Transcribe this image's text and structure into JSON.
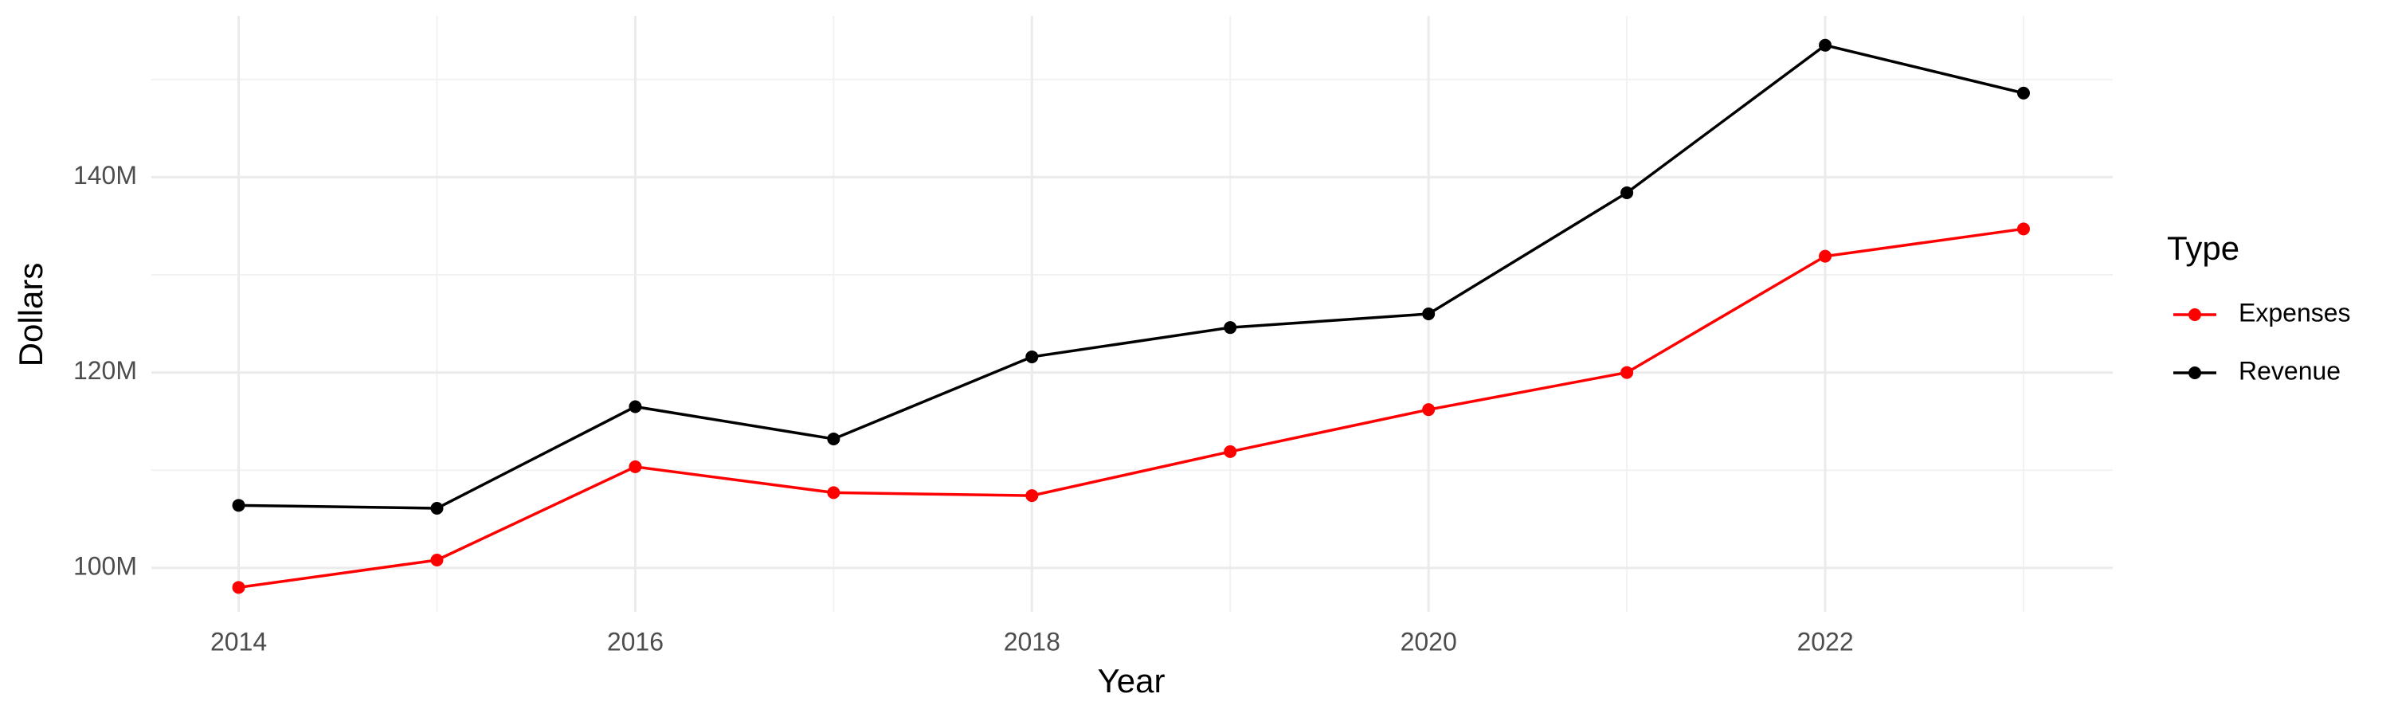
{
  "chart_data": {
    "type": "line",
    "x_label": "Year",
    "y_label": "Dollars",
    "legend_title": "Type",
    "x": [
      2014,
      2015,
      2016,
      2017,
      2018,
      2019,
      2020,
      2021,
      2022,
      2023
    ],
    "series": [
      {
        "name": "Expenses",
        "color": "#ff0000",
        "values": [
          98000000,
          100800000,
          110350000,
          107700000,
          107400000,
          111900000,
          116200000,
          120000000,
          131900000,
          134700000
        ]
      },
      {
        "name": "Revenue",
        "color": "#000000",
        "values": [
          106400000,
          106100000,
          116500000,
          113200000,
          121600000,
          124600000,
          126000000,
          138400000,
          153500000,
          148600000
        ]
      }
    ],
    "xlim": [
      2013.56,
      2023.45
    ],
    "xticks": [
      2014,
      2016,
      2018,
      2020,
      2022
    ],
    "ylim": [
      95500000,
      156500000
    ],
    "yticks": [
      {
        "value": 100000000,
        "label": "100M"
      },
      {
        "value": 120000000,
        "label": "120M"
      },
      {
        "value": 140000000,
        "label": "140M"
      }
    ],
    "grid": true,
    "legend": "right"
  }
}
